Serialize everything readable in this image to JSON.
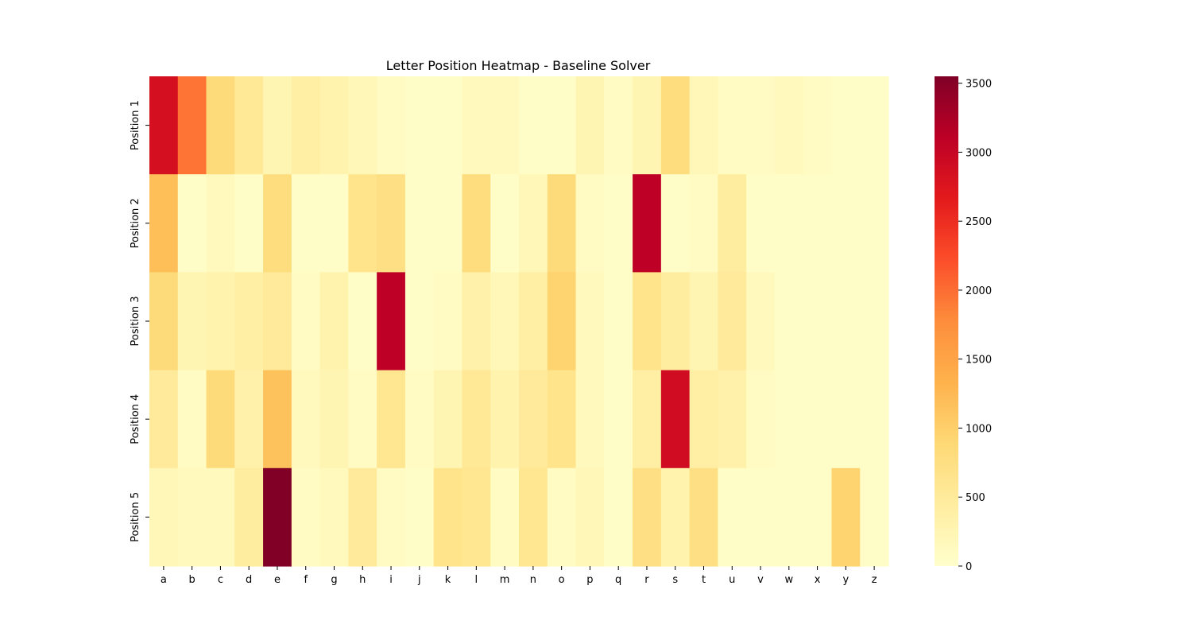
{
  "chart_data": {
    "type": "heatmap",
    "title": "Letter Position Heatmap - Baseline Solver",
    "xlabel": "",
    "ylabel": "",
    "x_categories": [
      "a",
      "b",
      "c",
      "d",
      "e",
      "f",
      "g",
      "h",
      "i",
      "j",
      "k",
      "l",
      "m",
      "n",
      "o",
      "p",
      "q",
      "r",
      "s",
      "t",
      "u",
      "v",
      "w",
      "x",
      "y",
      "z"
    ],
    "y_categories": [
      "Position 1",
      "Position 2",
      "Position 3",
      "Position 4",
      "Position 5"
    ],
    "values": [
      [
        2850,
        1950,
        850,
        550,
        250,
        400,
        300,
        200,
        100,
        50,
        50,
        150,
        150,
        50,
        50,
        250,
        100,
        250,
        800,
        200,
        100,
        100,
        150,
        100,
        50,
        50
      ],
      [
        1200,
        50,
        150,
        50,
        800,
        50,
        50,
        650,
        750,
        50,
        50,
        800,
        50,
        200,
        850,
        100,
        50,
        3100,
        50,
        100,
        450,
        50,
        50,
        50,
        50,
        50
      ],
      [
        850,
        250,
        300,
        400,
        500,
        100,
        300,
        50,
        3100,
        50,
        100,
        350,
        200,
        400,
        950,
        150,
        50,
        650,
        450,
        250,
        500,
        150,
        50,
        50,
        50,
        50
      ],
      [
        500,
        100,
        850,
        350,
        1150,
        150,
        250,
        100,
        600,
        100,
        250,
        550,
        300,
        500,
        650,
        150,
        50,
        400,
        2900,
        400,
        350,
        100,
        50,
        50,
        50,
        50
      ],
      [
        200,
        150,
        150,
        450,
        3550,
        100,
        150,
        500,
        100,
        50,
        650,
        600,
        100,
        600,
        100,
        200,
        50,
        750,
        300,
        750,
        50,
        50,
        50,
        50,
        950,
        50
      ]
    ],
    "colorbar": {
      "min": 0,
      "max": 3550,
      "ticks": [
        0,
        500,
        1000,
        1500,
        2000,
        2500,
        3000,
        3500
      ],
      "colormap": "YlOrRd"
    },
    "grid": false
  }
}
